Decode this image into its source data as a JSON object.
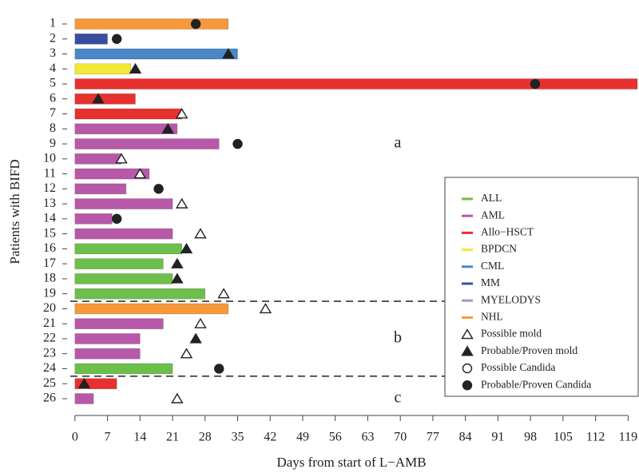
{
  "chart_data": {
    "type": "swimmer",
    "x_label": "Days from start of L−AMB",
    "y_label": "Patients with BIFD",
    "categories": [
      "1",
      "2",
      "3",
      "4",
      "5",
      "6",
      "7",
      "8",
      "9",
      "10",
      "11",
      "12",
      "13",
      "14",
      "15",
      "16",
      "17",
      "18",
      "19",
      "20",
      "21",
      "22",
      "23",
      "24",
      "25",
      "26"
    ],
    "values": [
      33,
      7,
      35,
      12,
      121,
      13,
      23,
      22,
      31,
      10,
      16,
      11,
      21,
      8,
      21,
      23,
      19,
      21,
      28,
      33,
      19,
      14,
      14,
      21,
      9,
      4
    ],
    "diagnosis": [
      "NHL",
      "MM",
      "CML",
      "BPDCN",
      "Allo−HSCT",
      "Allo−HSCT",
      "Allo−HSCT",
      "AML",
      "AML",
      "AML",
      "AML",
      "AML",
      "AML",
      "AML",
      "AML",
      "ALL",
      "ALL",
      "ALL",
      "ALL",
      "NHL",
      "AML",
      "AML",
      "AML",
      "ALL",
      "Allo−HSCT",
      "AML"
    ],
    "event_days": [
      26,
      9,
      33,
      13,
      99,
      5,
      23,
      20,
      35,
      10,
      14,
      18,
      23,
      9,
      27,
      24,
      22,
      22,
      32,
      41,
      27,
      26,
      24,
      31,
      2,
      22
    ],
    "event_type": [
      "Probable/Proven Candida",
      "Probable/Proven Candida",
      "Probable/Proven mold",
      "Probable/Proven mold",
      "Probable/Proven Candida",
      "Probable/Proven mold",
      "Possible mold",
      "Probable/Proven mold",
      "Probable/Proven Candida",
      "Possible mold",
      "Possible mold",
      "Probable/Proven Candida",
      "Possible mold",
      "Probable/Proven Candida",
      "Possible mold",
      "Probable/Proven mold",
      "Probable/Proven mold",
      "Probable/Proven mold",
      "Possible mold",
      "Possible mold",
      "Possible mold",
      "Probable/Proven mold",
      "Possible mold",
      "Probable/Proven Candida",
      "Probable/Proven mold",
      "Possible mold"
    ],
    "diagnosis_legend": [
      {
        "name": "ALL",
        "color": "#6dbf4b"
      },
      {
        "name": "AML",
        "color": "#b759a8"
      },
      {
        "name": "Allo−HSCT",
        "color": "#e8302e"
      },
      {
        "name": "BPDCN",
        "color": "#f0e935"
      },
      {
        "name": "CML",
        "color": "#4a87c7"
      },
      {
        "name": "MM",
        "color": "#3a4e9f"
      },
      {
        "name": "MYELODYS",
        "color": "#9c9ad2"
      },
      {
        "name": "NHL",
        "color": "#f7983b"
      }
    ],
    "event_legend": [
      {
        "name": "Possible mold",
        "shape": "triangle",
        "filled": false
      },
      {
        "name": "Probable/Proven mold",
        "shape": "triangle",
        "filled": true
      },
      {
        "name": "Possible Candida",
        "shape": "circle",
        "filled": false
      },
      {
        "name": "Probable/Proven Candida",
        "shape": "circle",
        "filled": true
      }
    ],
    "group_labels": [
      "a",
      "b",
      "c"
    ],
    "xlim": [
      -1,
      121
    ],
    "xticks": [
      0,
      7,
      14,
      21,
      28,
      35,
      42,
      49,
      56,
      63,
      70,
      77,
      84,
      91,
      98,
      105,
      112,
      119
    ]
  }
}
